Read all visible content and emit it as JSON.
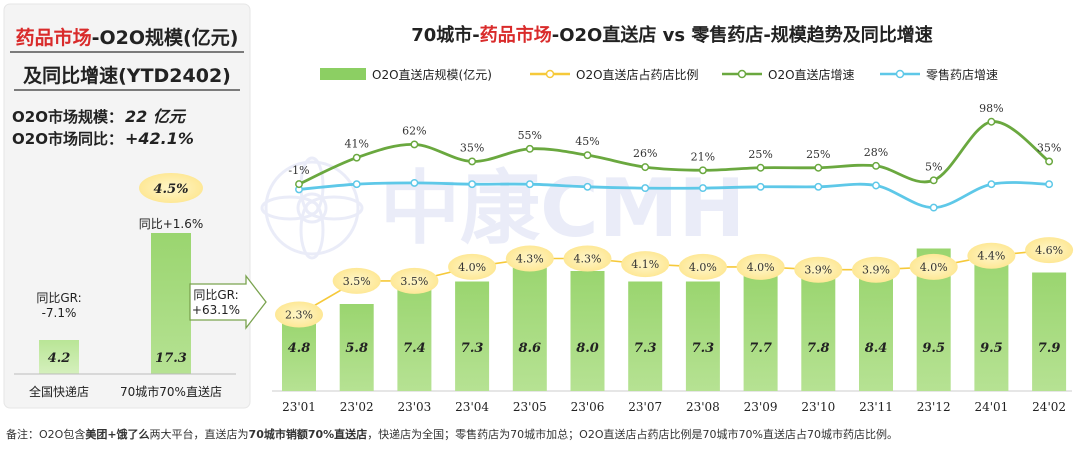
{
  "left_panel": {
    "title_red": "药品市场",
    "title_rest": "-O2O规模(亿元)",
    "title_line2": "及同比增速(YTD2402)",
    "size_label": "O2O市场规模：",
    "size_value": "22 亿元",
    "growth_label": "O2O市场同比：",
    "growth_value": "+42.1%",
    "bars": [
      {
        "category": "全国快递店",
        "value": 4.2,
        "value_label": "4.2",
        "yoy": "同比GR:\n-7.1%"
      },
      {
        "category": "70城市70%直送店",
        "value": 17.3,
        "value_label": "17.3",
        "yoy": "同比+1.6%",
        "bubble": "4.5%"
      }
    ],
    "arrow_label": "同比GR:\n+63.1%"
  },
  "chart_data": {
    "type": "bar",
    "title_prefix": "70城市-",
    "title_red": "药品市场",
    "title_suffix": "-O2O直送店 vs 零售药店-规模趋势及同比增速",
    "categories": [
      "23'01",
      "23'02",
      "23'03",
      "23'04",
      "23'05",
      "23'06",
      "23'07",
      "23'08",
      "23'09",
      "23'10",
      "23'11",
      "23'12",
      "24'01",
      "24'02"
    ],
    "legend": [
      "O2O直送店规模(亿元)",
      "O2O直送店占药店比例",
      "O2O直送店增速",
      "零售药店增速"
    ],
    "series": [
      {
        "name": "O2O直送店规模(亿元)",
        "type": "bar",
        "color": "#8ccf63",
        "values": [
          4.8,
          5.8,
          7.4,
          7.3,
          8.6,
          8.0,
          7.3,
          7.3,
          7.7,
          7.8,
          8.4,
          9.5,
          9.5,
          7.9
        ],
        "labels": [
          "4.8",
          "5.8",
          "7.4",
          "7.3",
          "8.6",
          "8.0",
          "7.3",
          "7.3",
          "7.7",
          "7.8",
          "8.4",
          "9.5",
          "9.5",
          "7.9"
        ]
      },
      {
        "name": "O2O直送店占药店比例",
        "type": "bubble",
        "color": "#fde38a",
        "values": [
          2.3,
          3.5,
          3.5,
          4.0,
          4.3,
          4.3,
          4.1,
          4.0,
          4.0,
          3.9,
          3.9,
          4.0,
          4.4,
          4.6
        ],
        "labels": [
          "2.3%",
          "3.5%",
          "3.5%",
          "4.0%",
          "4.3%",
          "4.3%",
          "4.1%",
          "4.0%",
          "4.0%",
          "3.9%",
          "3.9%",
          "4.0%",
          "4.4%",
          "4.6%"
        ]
      },
      {
        "name": "O2O直送店增速",
        "type": "line",
        "color": "#6aa83f",
        "values": [
          -1,
          41,
          62,
          35,
          55,
          45,
          26,
          21,
          25,
          25,
          28,
          5,
          98,
          35
        ],
        "labels": [
          "-1%",
          "41%",
          "62%",
          "35%",
          "55%",
          "45%",
          "26%",
          "21%",
          "25%",
          "25%",
          "28%",
          "5%",
          "98%",
          "35%"
        ]
      },
      {
        "name": "零售药店增速",
        "type": "line",
        "color": "#5ec8e8",
        "values": [
          2,
          6,
          7,
          6,
          6,
          4,
          3,
          3,
          4,
          4,
          5,
          -12,
          6,
          6
        ]
      }
    ],
    "ylabel": "",
    "xlabel": ""
  },
  "watermark": "中康CMH",
  "footnote": {
    "prefix": "备注：O2O包含",
    "bold1": "美团+饿了么",
    "mid": "两大平台，直送店为",
    "bold2": "70城市销额70%直送店",
    "suffix": "，快递店为全国；零售药店为70城市加总；O2O直送店占药店比例是70城市70%直送店占70城市药店比例。"
  }
}
